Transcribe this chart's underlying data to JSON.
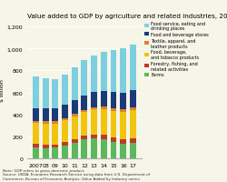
{
  "title": "Value added to GDP by agriculture and related industries, 2007-17",
  "ylabel": "$ billion",
  "years": [
    "2007",
    "08",
    "09",
    "10",
    "11",
    "12",
    "13",
    "14",
    "15",
    "16",
    "17"
  ],
  "farms": [
    100,
    90,
    95,
    115,
    140,
    170,
    180,
    175,
    150,
    130,
    140
  ],
  "forestry": [
    35,
    30,
    28,
    30,
    35,
    35,
    38,
    40,
    42,
    44,
    45
  ],
  "food_bev_tab": [
    185,
    195,
    195,
    200,
    205,
    215,
    225,
    230,
    240,
    245,
    250
  ],
  "textile": [
    20,
    20,
    18,
    20,
    22,
    22,
    23,
    25,
    25,
    26,
    27
  ],
  "food_stores": [
    115,
    120,
    120,
    120,
    125,
    130,
    140,
    145,
    150,
    155,
    155
  ],
  "food_service": [
    290,
    275,
    265,
    275,
    300,
    320,
    330,
    355,
    380,
    400,
    420
  ],
  "color_farms": "#5cb85c",
  "color_forestry": "#c0392b",
  "color_food_bev": "#f1c40f",
  "color_textile": "#e08030",
  "color_food_stores": "#1a3a7a",
  "color_food_service": "#7dcfdf",
  "legend_labels": [
    "Food service, eating and\ndrinking places",
    "Food and beverage stores",
    "Textile, apparel, and\nleather products",
    "Food, beverage,\nand tobacco products",
    "Forestry, fishing, and\nrelated activities",
    "Farms"
  ],
  "note": "Note: GDP refers to gross domestic product.\nSource: USDA, Economic Research Service using data from U.S. Department of\nCommerce, Bureau of Economic Analysis, Value Added by Industry series.",
  "ylim": [
    0,
    1250
  ],
  "yticks": [
    0,
    200,
    400,
    600,
    800,
    1000,
    1200
  ]
}
